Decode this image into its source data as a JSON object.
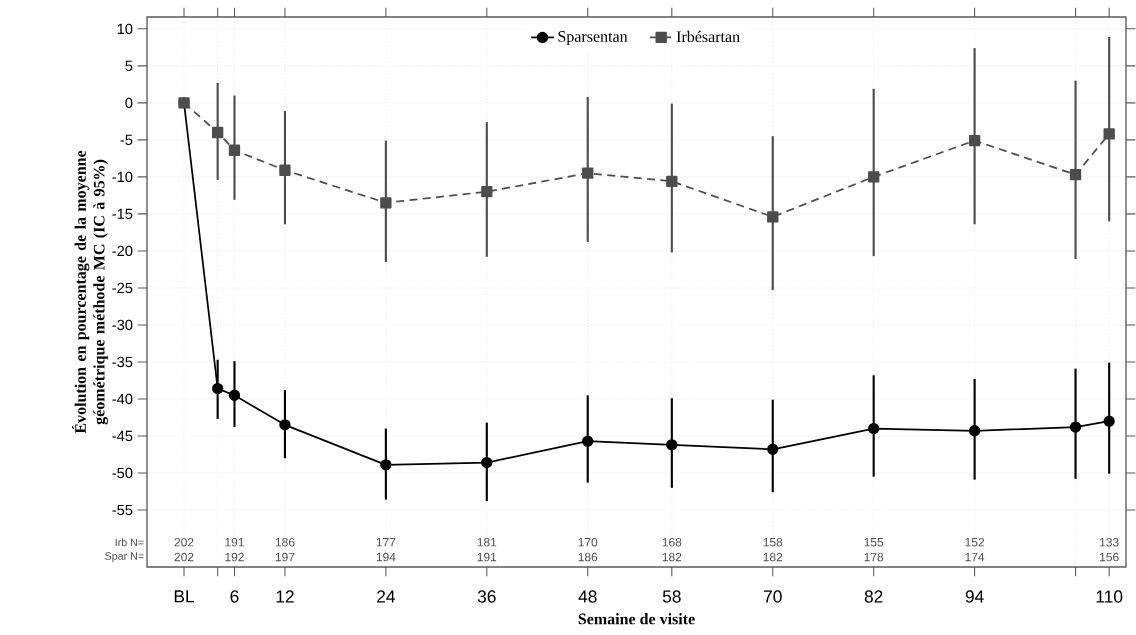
{
  "chart_data": {
    "type": "line",
    "xlabel": "Semaine de visite",
    "ylabel": "Évolution en pourcentage de la moyenne géométrique méthode MC  (IC à 95%)",
    "x": [
      0,
      4,
      6,
      12,
      24,
      36,
      48,
      58,
      70,
      82,
      94,
      106,
      110
    ],
    "xlim": [
      -4.4,
      112
    ],
    "xticks": [
      {
        "value": 0,
        "label": "BL"
      },
      {
        "value": 4,
        "label": null
      },
      6,
      12,
      24,
      36,
      48,
      58,
      70,
      82,
      94,
      {
        "value": 106,
        "label": null
      },
      110
    ],
    "ylim": [
      -62.7,
      11.6
    ],
    "yticks": [
      10,
      5,
      0,
      -5,
      -10,
      -15,
      -20,
      -25,
      -30,
      -35,
      -40,
      -45,
      -50,
      -55
    ],
    "grid": true,
    "legend": "top",
    "series": [
      {
        "name": "Sparsentan",
        "color": "#000000",
        "marker": "circle",
        "line_style": "solid",
        "values": [
          0,
          -38.6,
          -39.5,
          -43.5,
          -48.9,
          -48.6,
          -45.7,
          -46.2,
          -46.8,
          -44.0,
          -44.3,
          -43.8,
          -43.0
        ],
        "errors": [
          null,
          [
            -42.7,
            -34.7
          ],
          [
            -43.8,
            -34.9
          ],
          [
            -48.0,
            -38.8
          ],
          [
            -53.6,
            -44.0
          ],
          [
            -53.8,
            -43.2
          ],
          [
            -51.3,
            -39.5
          ],
          [
            -52.0,
            -39.9
          ],
          [
            -52.6,
            -40.1
          ],
          [
            -50.5,
            -36.8
          ],
          [
            -50.9,
            -37.3
          ],
          [
            -50.8,
            -35.9
          ],
          [
            -50.1,
            -35.1
          ]
        ]
      },
      {
        "name": "Irbésartan",
        "color": "#4d4d4d",
        "marker": "square",
        "line_style": "dashed",
        "values": [
          0,
          -4.0,
          -6.4,
          -9.1,
          -13.5,
          -12.0,
          -9.5,
          -10.6,
          -15.4,
          -10.0,
          -5.1,
          -9.7,
          -4.2
        ],
        "errors": [
          null,
          [
            -10.4,
            2.7
          ],
          [
            -13.1,
            1.0
          ],
          [
            -16.4,
            -1.1
          ],
          [
            -21.5,
            -5.1
          ],
          [
            -20.8,
            -2.6
          ],
          [
            -18.8,
            0.8
          ],
          [
            -20.2,
            -0.1
          ],
          [
            -25.3,
            -4.5
          ],
          [
            -20.7,
            1.9
          ],
          [
            -16.4,
            7.4
          ],
          [
            -21.1,
            3.0
          ],
          [
            -16.0,
            8.9
          ]
        ]
      }
    ],
    "annotations": [
      "Irb N=",
      "Spar N=",
      "202",
      "202",
      "191",
      "192",
      "186",
      "197",
      "177",
      "194",
      "181",
      "191",
      "170",
      "186",
      "168",
      "182",
      "158",
      "182",
      "155",
      "178",
      "152",
      "174",
      "133",
      "156"
    ]
  }
}
